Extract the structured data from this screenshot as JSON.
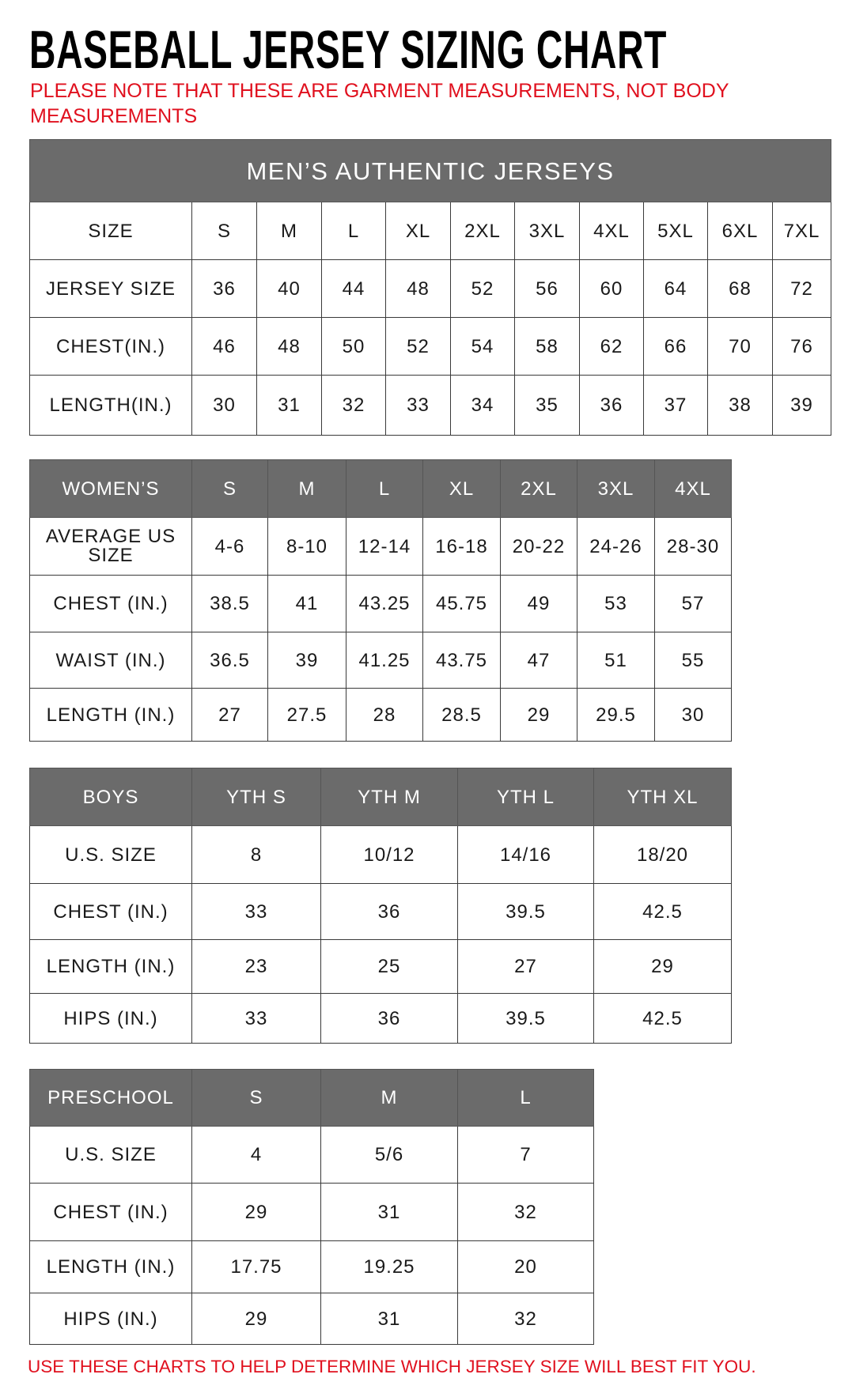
{
  "title": "BASEBALL JERSEY SIZING CHART",
  "note": "PLEASE NOTE THAT THESE ARE GARMENT MEASUREMENTS, NOT BODY MEASUREMENTS",
  "footer": "USE THESE CHARTS TO HELP DETERMINE WHICH JERSEY SIZE WILL BEST FIT YOU.",
  "colors": {
    "header_bg": "#6b6b6b",
    "note_red": "#e0101e"
  },
  "mens": {
    "caption": "MEN’S AUTHENTIC JERSEYS",
    "header": [
      "SIZE",
      "S",
      "M",
      "L",
      "XL",
      "2XL",
      "3XL",
      "4XL",
      "5XL",
      "6XL",
      "7XL"
    ],
    "rows": [
      [
        "JERSEY SIZE",
        "36",
        "40",
        "44",
        "48",
        "52",
        "56",
        "60",
        "64",
        "68",
        "72"
      ],
      [
        "CHEST(IN.)",
        "46",
        "48",
        "50",
        "52",
        "54",
        "58",
        "62",
        "66",
        "70",
        "76"
      ],
      [
        "LENGTH(IN.)",
        "30",
        "31",
        "32",
        "33",
        "34",
        "35",
        "36",
        "37",
        "38",
        "39"
      ]
    ]
  },
  "womens": {
    "header": [
      "WOMEN’S",
      "S",
      "M",
      "L",
      "XL",
      "2XL",
      "3XL",
      "4XL"
    ],
    "rows": [
      [
        "AVERAGE US SIZE",
        "4-6",
        "8-10",
        "12-14",
        "16-18",
        "20-22",
        "24-26",
        "28-30"
      ],
      [
        "CHEST (IN.)",
        "38.5",
        "41",
        "43.25",
        "45.75",
        "49",
        "53",
        "57"
      ],
      [
        "WAIST (IN.)",
        "36.5",
        "39",
        "41.25",
        "43.75",
        "47",
        "51",
        "55"
      ],
      [
        "LENGTH (IN.)",
        "27",
        "27.5",
        "28",
        "28.5",
        "29",
        "29.5",
        "30"
      ]
    ]
  },
  "boys": {
    "header": [
      "BOYS",
      "YTH S",
      "YTH M",
      "YTH L",
      "YTH XL"
    ],
    "rows": [
      [
        "U.S. SIZE",
        "8",
        "10/12",
        "14/16",
        "18/20"
      ],
      [
        "CHEST (IN.)",
        "33",
        "36",
        "39.5",
        "42.5"
      ],
      [
        "LENGTH (IN.)",
        "23",
        "25",
        "27",
        "29"
      ],
      [
        "HIPS (IN.)",
        "33",
        "36",
        "39.5",
        "42.5"
      ]
    ]
  },
  "preschool": {
    "header": [
      "PRESCHOOL",
      "S",
      "M",
      "L"
    ],
    "rows": [
      [
        "U.S. SIZE",
        "4",
        "5/6",
        "7"
      ],
      [
        "CHEST (IN.)",
        "29",
        "31",
        "32"
      ],
      [
        "LENGTH (IN.)",
        "17.75",
        "19.25",
        "20"
      ],
      [
        "HIPS (IN.)",
        "29",
        "31",
        "32"
      ]
    ]
  }
}
